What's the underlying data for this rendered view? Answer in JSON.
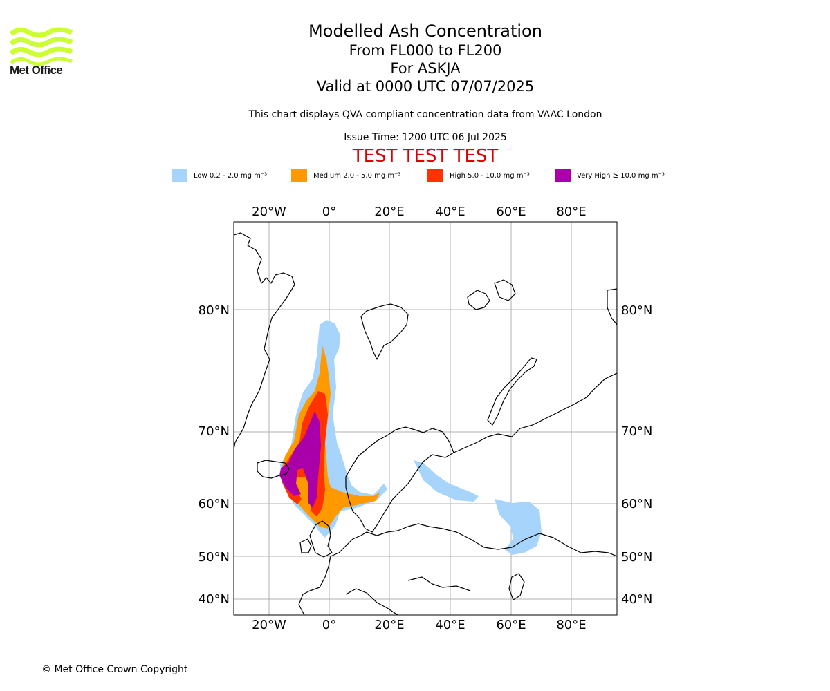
{
  "logo": {
    "name": "Met Office",
    "color": "#ccff33"
  },
  "title": {
    "line1": "Modelled Ash Concentration",
    "line2": "From FL000 to FL200",
    "line3": "For ASKJA",
    "line4": "Valid at 0000 UTC 07/07/2025"
  },
  "note": "This chart displays QVA compliant concentration data from VAAC London",
  "issue_time": "Issue Time: 1200 UTC 06 Jul 2025",
  "test_banner": "TEST TEST TEST",
  "test_color": "#dd0000",
  "legend": [
    {
      "label": "Low 0.2 - 2.0 mg m⁻³",
      "color": "#a6d4fa"
    },
    {
      "label": "Medium 2.0 - 5.0 mg m⁻³",
      "color": "#ff9900"
    },
    {
      "label": "High 5.0 - 10.0 mg m⁻³",
      "color": "#ff3300"
    },
    {
      "label": "Very High ≥ 10.0 mg m⁻³",
      "color": "#aa00aa"
    }
  ],
  "map": {
    "lon_labels": [
      "20°W",
      "0°",
      "20°E",
      "40°E",
      "60°E",
      "80°E"
    ],
    "lat_labels": [
      "80°N",
      "70°N",
      "60°N",
      "50°N",
      "40°N"
    ],
    "grid": true
  },
  "copyright": "© Met Office Crown Copyright"
}
